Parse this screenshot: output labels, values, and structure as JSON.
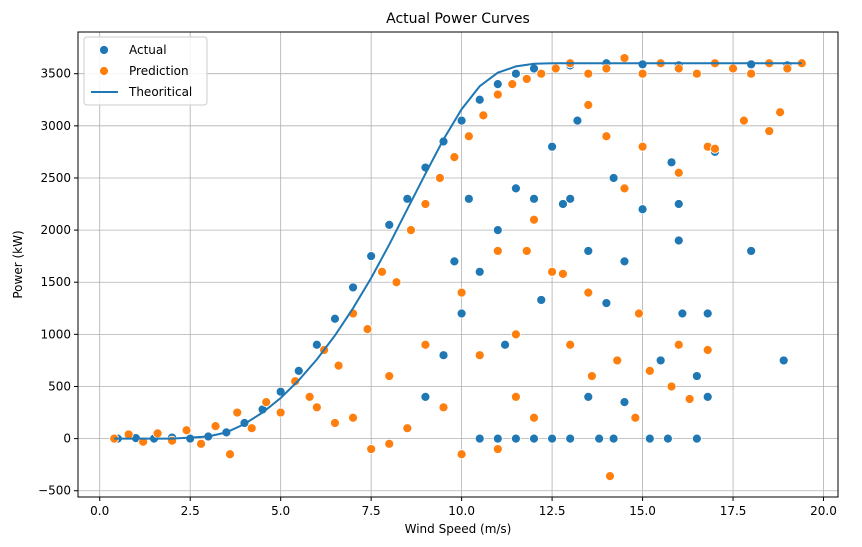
{
  "chart_data": {
    "type": "scatter",
    "title": "Actual Power Curves",
    "xlabel": "Wind Speed (m/s)",
    "ylabel": "Power (kW)",
    "xlim": [
      -0.6,
      20.4
    ],
    "ylim": [
      -560,
      3900
    ],
    "xticks": [
      0.0,
      2.5,
      5.0,
      7.5,
      10.0,
      12.5,
      15.0,
      17.5,
      20.0
    ],
    "xtick_labels": [
      "0.0",
      "2.5",
      "5.0",
      "7.5",
      "10.0",
      "12.5",
      "15.0",
      "17.5",
      "20.0"
    ],
    "yticks": [
      -500,
      0,
      500,
      1000,
      1500,
      2000,
      2500,
      3000,
      3500
    ],
    "ytick_labels": [
      "−500",
      "0",
      "500",
      "1000",
      "1500",
      "2000",
      "2500",
      "3000",
      "3500"
    ],
    "grid": true,
    "legend_position": "top-left",
    "colors": {
      "actual": "#1f77b4",
      "prediction": "#ff7f0e",
      "theoretical": "#1f77b4"
    },
    "series": [
      {
        "name": "Actual",
        "kind": "scatter",
        "points": [
          [
            0.5,
            0
          ],
          [
            1.0,
            5
          ],
          [
            1.5,
            0
          ],
          [
            2.0,
            10
          ],
          [
            2.5,
            0
          ],
          [
            3.0,
            20
          ],
          [
            3.5,
            60
          ],
          [
            4.0,
            150
          ],
          [
            4.5,
            280
          ],
          [
            5.0,
            450
          ],
          [
            5.5,
            650
          ],
          [
            6.0,
            900
          ],
          [
            6.5,
            1150
          ],
          [
            7.0,
            1450
          ],
          [
            7.5,
            1750
          ],
          [
            8.0,
            2050
          ],
          [
            8.5,
            2300
          ],
          [
            9.0,
            2600
          ],
          [
            9.5,
            2850
          ],
          [
            10.0,
            3050
          ],
          [
            10.5,
            3250
          ],
          [
            11.0,
            3400
          ],
          [
            11.5,
            3500
          ],
          [
            12.0,
            3550
          ],
          [
            13.0,
            3580
          ],
          [
            14.0,
            3600
          ],
          [
            15.0,
            3590
          ],
          [
            16.0,
            3580
          ],
          [
            17.0,
            3600
          ],
          [
            18.0,
            3590
          ],
          [
            19.0,
            3580
          ],
          [
            19.4,
            3600
          ],
          [
            12.5,
            2800
          ],
          [
            13.0,
            2300
          ],
          [
            13.5,
            1800
          ],
          [
            14.0,
            1300
          ],
          [
            14.5,
            1700
          ],
          [
            16.0,
            1900
          ],
          [
            18.0,
            1800
          ],
          [
            16.1,
            1200
          ],
          [
            16.8,
            1200
          ],
          [
            17.0,
            2750
          ],
          [
            15.8,
            2650
          ],
          [
            16.0,
            2250
          ],
          [
            15.0,
            2200
          ],
          [
            11.5,
            2400
          ],
          [
            11.0,
            2000
          ],
          [
            10.5,
            1600
          ],
          [
            10.0,
            1200
          ],
          [
            9.5,
            800
          ],
          [
            9.0,
            400
          ],
          [
            10.5,
            0
          ],
          [
            11.0,
            0
          ],
          [
            11.5,
            0
          ],
          [
            12.0,
            0
          ],
          [
            12.5,
            0
          ],
          [
            13.0,
            0
          ],
          [
            13.8,
            0
          ],
          [
            14.2,
            0
          ],
          [
            15.2,
            0
          ],
          [
            15.7,
            0
          ],
          [
            16.5,
            0
          ],
          [
            13.5,
            400
          ],
          [
            14.5,
            350
          ],
          [
            15.5,
            750
          ],
          [
            16.5,
            600
          ],
          [
            16.8,
            400
          ],
          [
            18.9,
            750
          ],
          [
            12.2,
            1330
          ],
          [
            11.2,
            900
          ],
          [
            12.0,
            2300
          ],
          [
            12.8,
            2250
          ],
          [
            14.2,
            2500
          ],
          [
            13.2,
            3050
          ],
          [
            10.2,
            2300
          ],
          [
            9.8,
            1700
          ]
        ]
      },
      {
        "name": "Prediction",
        "kind": "scatter",
        "points": [
          [
            0.4,
            0
          ],
          [
            0.8,
            40
          ],
          [
            1.2,
            -30
          ],
          [
            1.6,
            50
          ],
          [
            2.0,
            -20
          ],
          [
            2.4,
            80
          ],
          [
            2.8,
            -50
          ],
          [
            3.2,
            120
          ],
          [
            3.6,
            -150
          ],
          [
            3.8,
            250
          ],
          [
            4.2,
            100
          ],
          [
            4.6,
            350
          ],
          [
            5.0,
            250
          ],
          [
            5.4,
            550
          ],
          [
            5.8,
            400
          ],
          [
            6.2,
            850
          ],
          [
            6.6,
            700
          ],
          [
            7.0,
            1200
          ],
          [
            7.4,
            1050
          ],
          [
            7.8,
            1600
          ],
          [
            8.2,
            1500
          ],
          [
            8.6,
            2000
          ],
          [
            9.0,
            2250
          ],
          [
            9.4,
            2500
          ],
          [
            9.8,
            2700
          ],
          [
            10.2,
            2900
          ],
          [
            10.6,
            3100
          ],
          [
            11.0,
            3300
          ],
          [
            11.4,
            3400
          ],
          [
            11.8,
            3450
          ],
          [
            12.2,
            3500
          ],
          [
            12.6,
            3550
          ],
          [
            13.0,
            3600
          ],
          [
            13.5,
            3500
          ],
          [
            14.0,
            3550
          ],
          [
            14.5,
            3650
          ],
          [
            15.0,
            3500
          ],
          [
            15.5,
            3600
          ],
          [
            16.0,
            3550
          ],
          [
            16.5,
            3500
          ],
          [
            17.0,
            3600
          ],
          [
            17.5,
            3550
          ],
          [
            18.0,
            3500
          ],
          [
            18.5,
            3600
          ],
          [
            19.0,
            3550
          ],
          [
            19.4,
            3600
          ],
          [
            6.0,
            300
          ],
          [
            7.0,
            200
          ],
          [
            8.0,
            600
          ],
          [
            8.5,
            100
          ],
          [
            9.0,
            900
          ],
          [
            9.5,
            300
          ],
          [
            10.0,
            1400
          ],
          [
            10.5,
            800
          ],
          [
            11.0,
            1800
          ],
          [
            11.5,
            1000
          ],
          [
            12.0,
            2100
          ],
          [
            12.5,
            1600
          ],
          [
            13.0,
            900
          ],
          [
            13.5,
            3200
          ],
          [
            14.0,
            2900
          ],
          [
            14.5,
            2400
          ],
          [
            15.0,
            2800
          ],
          [
            16.0,
            2550
          ],
          [
            16.8,
            2800
          ],
          [
            17.0,
            2780
          ],
          [
            17.8,
            3050
          ],
          [
            18.5,
            2950
          ],
          [
            18.8,
            3130
          ],
          [
            15.2,
            650
          ],
          [
            16.0,
            900
          ],
          [
            16.8,
            850
          ],
          [
            16.3,
            380
          ],
          [
            14.8,
            200
          ],
          [
            14.3,
            750
          ],
          [
            14.1,
            -360
          ],
          [
            12.0,
            200
          ],
          [
            11.5,
            400
          ],
          [
            11.0,
            -100
          ],
          [
            10.0,
            -150
          ],
          [
            7.5,
            -100
          ],
          [
            8.0,
            -50
          ],
          [
            6.5,
            150
          ],
          [
            12.8,
            1580
          ],
          [
            13.6,
            600
          ],
          [
            14.9,
            1200
          ],
          [
            13.5,
            1400
          ],
          [
            15.8,
            500
          ],
          [
            11.8,
            1800
          ]
        ]
      },
      {
        "name": "Theoritical",
        "kind": "line",
        "points": [
          [
            0.4,
            0
          ],
          [
            2.0,
            0
          ],
          [
            3.0,
            20
          ],
          [
            3.5,
            60
          ],
          [
            4.0,
            140
          ],
          [
            4.5,
            250
          ],
          [
            5.0,
            390
          ],
          [
            5.5,
            560
          ],
          [
            6.0,
            760
          ],
          [
            6.5,
            990
          ],
          [
            7.0,
            1250
          ],
          [
            7.5,
            1540
          ],
          [
            8.0,
            1860
          ],
          [
            8.5,
            2200
          ],
          [
            9.0,
            2540
          ],
          [
            9.5,
            2870
          ],
          [
            10.0,
            3160
          ],
          [
            10.5,
            3380
          ],
          [
            11.0,
            3510
          ],
          [
            11.5,
            3570
          ],
          [
            12.0,
            3595
          ],
          [
            12.5,
            3600
          ],
          [
            13.0,
            3600
          ],
          [
            19.4,
            3600
          ]
        ]
      }
    ]
  }
}
